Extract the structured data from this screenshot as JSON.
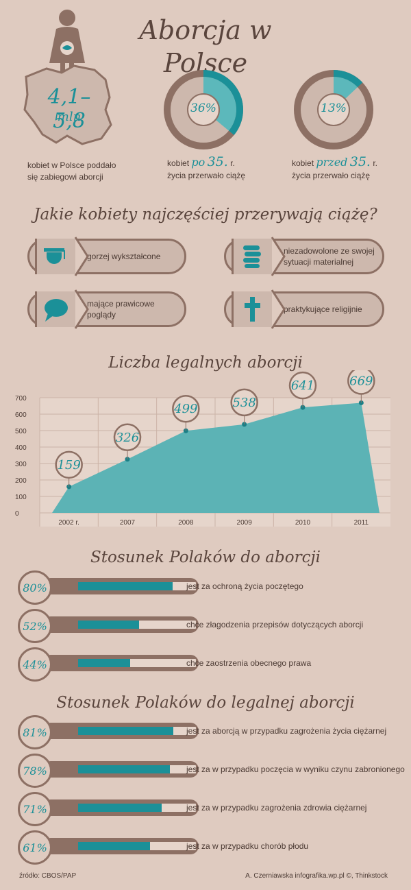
{
  "title": "Aborcja w Polsce",
  "colors": {
    "background": "#dfcbc0",
    "brown": "#8d7064",
    "teal": "#1b9098",
    "light_teal": "#5cb8bb"
  },
  "map_stat": {
    "value": "4,1–5,8",
    "unit": "mln",
    "caption_line1": "kobiet w Polsce poddało",
    "caption_line2": "się zabiegowi aborcji"
  },
  "donut1": {
    "percent_label": "36%",
    "fraction": 0.36,
    "prefix": "kobiet",
    "emph": "po",
    "age": "35.",
    "suffix": "r.",
    "line2": "życia przerwało ciążę"
  },
  "donut2": {
    "percent_label": "13%",
    "fraction": 0.13,
    "prefix": "kobiet",
    "emph": "przed",
    "age": "35.",
    "suffix": "r.",
    "line2": "życia przerwało ciążę"
  },
  "question_title": "Jakie kobiety najczęściej przerywają ciążę?",
  "women_types": [
    {
      "label": "gorzej wykształcone",
      "icon": "graduation-cap-icon"
    },
    {
      "label": "niezadowolone ze swojej sytuacji materialnej",
      "icon": "coin-stack-icon"
    },
    {
      "label": "mające prawicowe poglądy",
      "icon": "speech-bubble-icon"
    },
    {
      "label": "praktykujące religijnie",
      "icon": "cross-icon"
    }
  ],
  "chart_title": "Liczba legalnych aborcji",
  "chart_data": {
    "type": "area",
    "title": "Liczba legalnych aborcji",
    "categories": [
      "2002 r.",
      "2007",
      "2008",
      "2009",
      "2010",
      "2011"
    ],
    "values": [
      159,
      326,
      499,
      538,
      641,
      669
    ],
    "yticks": [
      0,
      100,
      200,
      300,
      400,
      500,
      600,
      700
    ],
    "ylim": [
      0,
      700
    ],
    "grid": true
  },
  "attitudes_title": "Stosunek Polaków do aborcji",
  "attitudes": [
    {
      "label": "80%",
      "value": 80,
      "text": "jest za ochroną życia poczętego"
    },
    {
      "label": "52%",
      "value": 52,
      "text": "chce złagodzenia przepisów dotyczących aborcji"
    },
    {
      "label": "44%",
      "value": 44,
      "text": "chce zaostrzenia obecnego prawa"
    }
  ],
  "legal_title": "Stosunek Polaków do legalnej aborcji",
  "legal": [
    {
      "label": "81%",
      "value": 81,
      "text": "jest za aborcją w przypadku zagrożenia życia ciężarnej"
    },
    {
      "label": "78%",
      "value": 78,
      "text": "jest za w przypadku poczęcia w wyniku czynu zabronionego"
    },
    {
      "label": "71%",
      "value": 71,
      "text": "jest za w przypadku zagrożenia zdrowia ciężarnej"
    },
    {
      "label": "61%",
      "value": 61,
      "text": "jest za w przypadku chorób płodu"
    }
  ],
  "footer": {
    "source": "źródło: CBOS/PAP",
    "credit": "A. Czerniawska infografika.wp.pl ©, Thinkstock"
  }
}
